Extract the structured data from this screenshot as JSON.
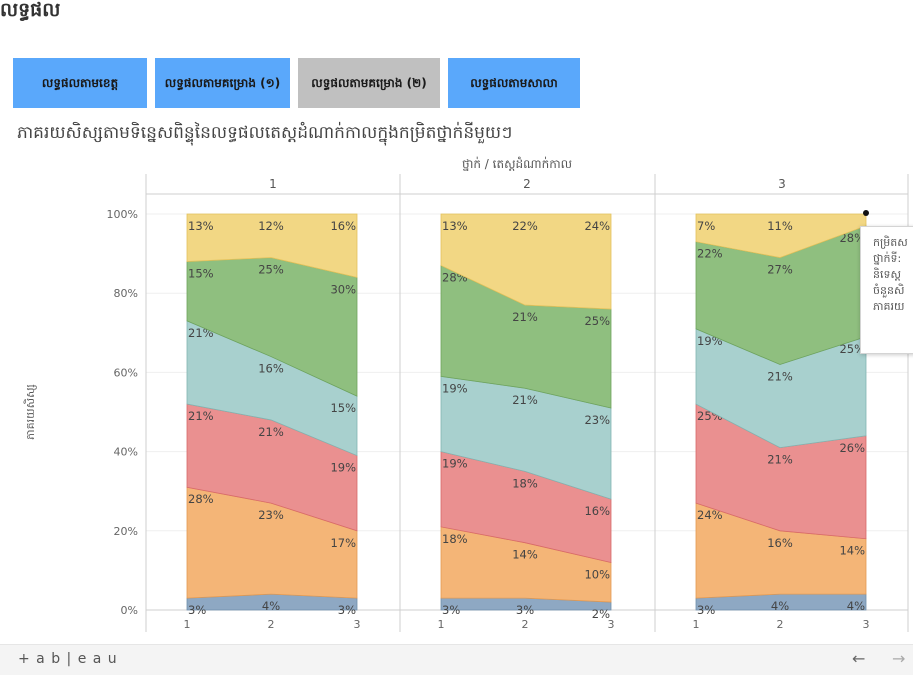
{
  "page": {
    "title": "លទ្ធផល",
    "chart_title": "ភាគរយសិស្សតាមទិន្នេសពិន្ទុនៃលទ្ធផលតេស្ដដំណាក់កាលក្នុងកម្រិតថ្នាក់នីមួយៗ"
  },
  "tabs": [
    {
      "label": "លទ្ធផលតាមខេត្ត",
      "active": false
    },
    {
      "label": "លទ្ធផលតាមគម្រោង (១)",
      "active": false
    },
    {
      "label": "លទ្ធផលតាមគម្រោង (២)",
      "active": true
    },
    {
      "label": "លទ្ធផលតាមសាលា",
      "active": false
    }
  ],
  "tooltip": {
    "lines": [
      "កម្រិតស",
      "ថ្នាក់ទី:",
      "និទេស្ត",
      "ចំនួនសិ",
      "ភាគរយ"
    ]
  },
  "footer": {
    "logo_text": "+ a b | e a u",
    "back_icon": "arrow-left-icon",
    "forward_icon": "arrow-right-icon"
  },
  "colors": {
    "accent_tab": "#5aa8fb",
    "active_tab": "#c0c0c0",
    "series": [
      "#8ea8c3",
      "#f4b577",
      "#ea9090",
      "#a8d0ce",
      "#8fbf7f",
      "#f2d784"
    ]
  },
  "chart_data": {
    "type": "area",
    "column_header": "ថ្នាក់ / តេស្ដដំណាក់កាល",
    "ylabel": "ភាគរយសិស្ស",
    "ylim": [
      0,
      100
    ],
    "y_ticks": [
      "0%",
      "20%",
      "40%",
      "60%",
      "80%",
      "100%"
    ],
    "panels": [
      {
        "label": "1",
        "x": [
          "1",
          "2",
          "3"
        ],
        "series": [
          {
            "values": [
              3,
              4,
              3
            ],
            "labels": [
              "3%",
              "4%",
              "3%"
            ]
          },
          {
            "values": [
              28,
              23,
              17
            ],
            "labels": [
              "28%",
              "23%",
              "17%"
            ]
          },
          {
            "values": [
              21,
              21,
              19
            ],
            "labels": [
              "21%",
              "21%",
              "19%"
            ]
          },
          {
            "values": [
              21,
              16,
              15
            ],
            "labels": [
              "21%",
              "16%",
              "15%"
            ]
          },
          {
            "values": [
              15,
              25,
              30
            ],
            "labels": [
              "15%",
              "25%",
              "30%"
            ]
          },
          {
            "values": [
              13,
              12,
              16
            ],
            "labels": [
              "13%",
              "12%",
              "16%"
            ]
          }
        ]
      },
      {
        "label": "2",
        "x": [
          "1",
          "2",
          "3"
        ],
        "series": [
          {
            "values": [
              3,
              3,
              2
            ],
            "labels": [
              "3%",
              "3%",
              "2%"
            ]
          },
          {
            "values": [
              18,
              14,
              10
            ],
            "labels": [
              "18%",
              "14%",
              "10%"
            ]
          },
          {
            "values": [
              19,
              18,
              16
            ],
            "labels": [
              "19%",
              "18%",
              "16%"
            ]
          },
          {
            "values": [
              19,
              21,
              23
            ],
            "labels": [
              "19%",
              "21%",
              "23%"
            ]
          },
          {
            "values": [
              28,
              21,
              25
            ],
            "labels": [
              "28%",
              "21%",
              "25%"
            ]
          },
          {
            "values": [
              13,
              22,
              24
            ],
            "labels": [
              "13%",
              "22%",
              "24%"
            ]
          }
        ]
      },
      {
        "label": "3",
        "x": [
          "1",
          "2",
          "3"
        ],
        "series": [
          {
            "values": [
              3,
              4,
              4
            ],
            "labels": [
              "3%",
              "4%",
              "4%"
            ]
          },
          {
            "values": [
              24,
              16,
              14
            ],
            "labels": [
              "24%",
              "16%",
              "14%"
            ]
          },
          {
            "values": [
              25,
              21,
              26
            ],
            "labels": [
              "25%",
              "21%",
              "26%"
            ]
          },
          {
            "values": [
              19,
              21,
              25
            ],
            "labels": [
              "19%",
              "21%",
              "25%"
            ]
          },
          {
            "values": [
              22,
              27,
              28
            ],
            "labels": [
              "22%",
              "27%",
              "28%"
            ]
          },
          {
            "values": [
              7,
              11,
              4
            ],
            "labels": [
              "7%",
              "11%",
              ""
            ]
          }
        ]
      }
    ]
  }
}
